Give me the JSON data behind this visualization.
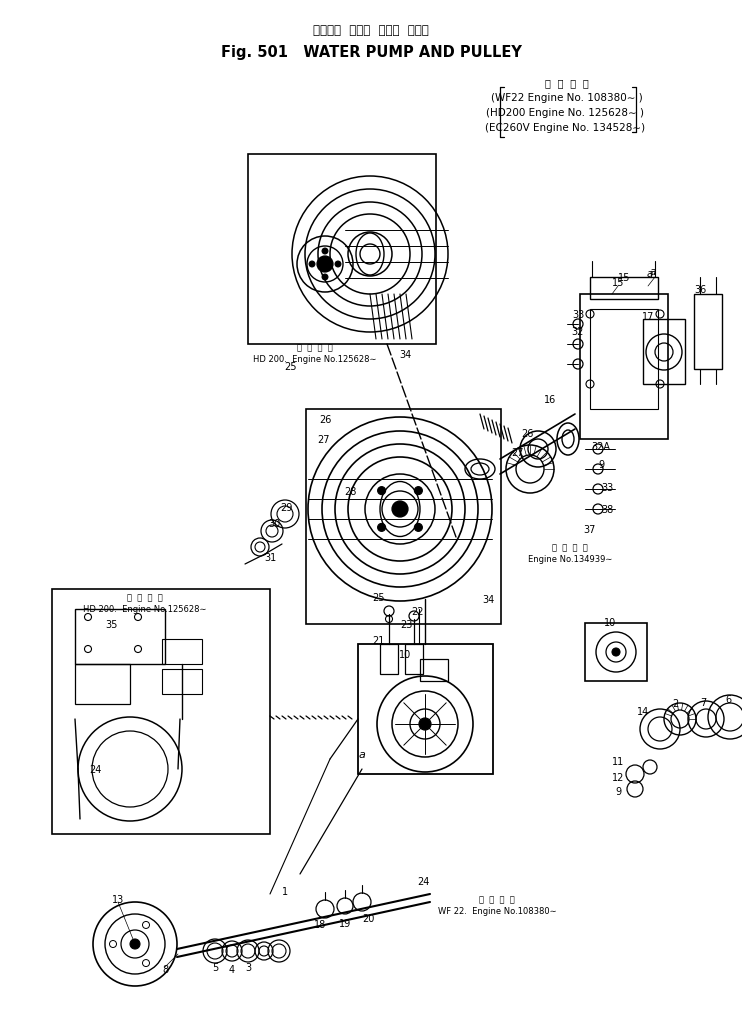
{
  "title_japanese": "ウオータ  ポンプ  および  プーリ",
  "title_english": "Fig. 501   WATER PUMP AND PULLEY",
  "engine_header": "適  用  号  機",
  "engine_line1": "(WF22 Engine No. 108380∼ )",
  "engine_line2": "(HD200 Engine No. 125628∼ )",
  "engine_line3": "(EC260V Engine No. 134528∼)",
  "note_tekiyo": "適  用  号  機",
  "note_hd200": "HD 200.  Engine No.125628∼",
  "note_hd200b": "HD 200.  Engine No.125628∼",
  "note_ec260": "Engine No.134939∼",
  "note_wf22": "WF 22.  Engine No.108380∼",
  "bg": "#ffffff",
  "black": "#000000"
}
